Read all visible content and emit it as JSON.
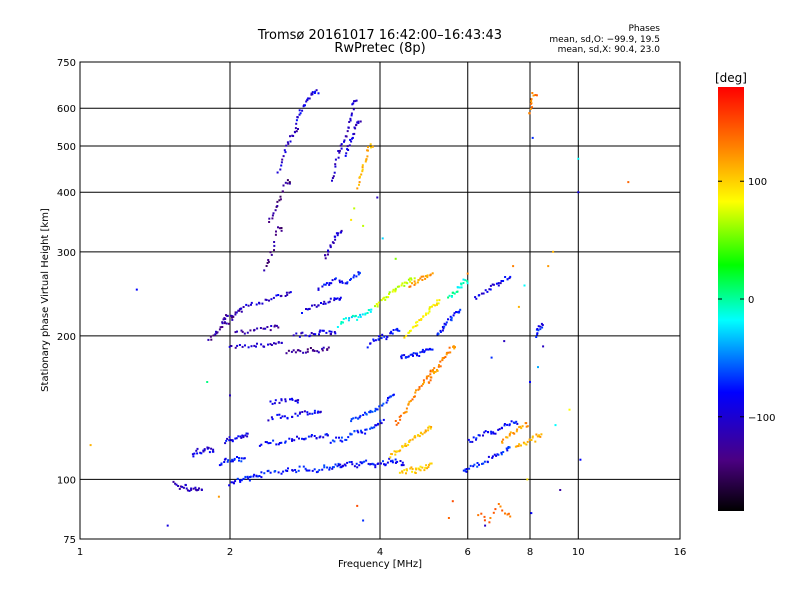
{
  "chart_data": {
    "type": "scatter",
    "title": "Tromsø 20161017 16:42:00–16:43:43",
    "subtitle": "RwPretec (8p)",
    "xlabel": "Frequency [MHz]",
    "ylabel": "Stationary phase Virtual Height [km]",
    "x_scale": "log",
    "y_scale": "log",
    "xlim": [
      1,
      16
    ],
    "ylim": [
      75,
      750
    ],
    "x_ticks": [
      1,
      2,
      4,
      6,
      8,
      10,
      16
    ],
    "x_tick_labels": [
      "1",
      "2",
      "4",
      "6",
      "8",
      "10",
      "16"
    ],
    "y_ticks": [
      75,
      100,
      200,
      300,
      400,
      500,
      600,
      750
    ],
    "y_tick_labels": [
      "75",
      "100",
      "200",
      "300",
      "400",
      "500",
      "600",
      "750"
    ],
    "grid": true,
    "colorbar": {
      "label": "[deg]",
      "range": [
        -180,
        180
      ],
      "ticks": [
        100,
        0,
        -100
      ],
      "tick_labels": [
        "100",
        "0",
        "−100"
      ],
      "colors": [
        "#000000",
        "#4b0082",
        "#0000ff",
        "#00ffff",
        "#00ff00",
        "#ffff00",
        "#ff8000",
        "#ff0000"
      ]
    },
    "annotation": {
      "heading": "Phases",
      "lines": [
        "mean, sd,O: −99.9, 19.5",
        "mean, sd,X:  90.4, 23.0"
      ]
    },
    "traces": [
      {
        "x": [
          1.55,
          1.58,
          1.62,
          1.66,
          1.7,
          1.73
        ],
        "y": [
          98,
          96,
          97,
          95,
          96,
          95
        ],
        "phase": -125
      },
      {
        "x": [
          1.68,
          1.72,
          1.76,
          1.8,
          1.83
        ],
        "y": [
          112,
          115,
          114,
          116,
          115
        ],
        "phase": -110
      },
      {
        "x": [
          1.82,
          1.86,
          1.9,
          1.95
        ],
        "y": [
          195,
          200,
          206,
          212
        ],
        "phase": -130
      },
      {
        "x": [
          1.93,
          1.97,
          2.01,
          2.05,
          2.09
        ],
        "y": [
          215,
          220,
          218,
          222,
          226
        ],
        "phase": -130
      },
      {
        "x": [
          2.0,
          2.05,
          2.1,
          2.15,
          2.2,
          2.25
        ],
        "y": [
          98,
          100,
          99,
          101,
          100,
          102
        ],
        "phase": -100
      },
      {
        "x": [
          1.9,
          1.95,
          2.0,
          2.05,
          2.1
        ],
        "y": [
          108,
          110,
          109,
          111,
          110
        ],
        "phase": -95
      },
      {
        "x": [
          1.95,
          2.0,
          2.05,
          2.1,
          2.15
        ],
        "y": [
          120,
          122,
          121,
          123,
          124
        ],
        "phase": -105
      },
      {
        "x": [
          2.0,
          2.1,
          2.2,
          2.3,
          2.4,
          2.5
        ],
        "y": [
          188,
          190,
          189,
          192,
          191,
          193
        ],
        "phase": -120
      },
      {
        "x": [
          2.05,
          2.15,
          2.25,
          2.35,
          2.45
        ],
        "y": [
          205,
          204,
          207,
          206,
          209
        ],
        "phase": -125
      },
      {
        "x": [
          2.1,
          2.2,
          2.3,
          2.4,
          2.5,
          2.6
        ],
        "y": [
          228,
          232,
          235,
          238,
          242,
          245
        ],
        "phase": -115
      },
      {
        "x": [
          2.3,
          2.4,
          2.5,
          2.6,
          2.7,
          2.8,
          2.9,
          3.0,
          3.1,
          3.2,
          3.3
        ],
        "y": [
          102,
          104,
          103,
          105,
          104,
          106,
          105,
          104,
          106,
          105,
          107
        ],
        "phase": -95
      },
      {
        "x": [
          2.3,
          2.4,
          2.5,
          2.6,
          2.7,
          2.8,
          2.9,
          3.0,
          3.1
        ],
        "y": [
          118,
          120,
          119,
          121,
          122,
          121,
          123,
          122,
          124
        ],
        "phase": -100
      },
      {
        "x": [
          2.4,
          2.5,
          2.6,
          2.7,
          2.8,
          2.9,
          3.0
        ],
        "y": [
          134,
          136,
          135,
          137,
          138,
          137,
          139
        ],
        "phase": -105
      },
      {
        "x": [
          2.4,
          2.5,
          2.6,
          2.7
        ],
        "y": [
          145,
          146,
          147,
          146
        ],
        "phase": -110
      },
      {
        "x": [
          2.35,
          2.4,
          2.45,
          2.5
        ],
        "y": [
          275,
          290,
          310,
          335
        ],
        "phase": -135
      },
      {
        "x": [
          2.4,
          2.45,
          2.5,
          2.55,
          2.6
        ],
        "y": [
          345,
          360,
          380,
          400,
          420
        ],
        "phase": -140
      },
      {
        "x": [
          2.5,
          2.55,
          2.6,
          2.65,
          2.7
        ],
        "y": [
          440,
          470,
          500,
          520,
          540
        ],
        "phase": -120
      },
      {
        "x": [
          2.7,
          2.75,
          2.8,
          2.85,
          2.9,
          2.95
        ],
        "y": [
          560,
          580,
          600,
          620,
          640,
          650
        ],
        "phase": -110
      },
      {
        "x": [
          2.6,
          2.7,
          2.8,
          2.9,
          3.0,
          3.1
        ],
        "y": [
          185,
          186,
          185,
          187,
          186,
          188
        ],
        "phase": -135
      },
      {
        "x": [
          2.7,
          2.8,
          2.9,
          3.0,
          3.1,
          3.2
        ],
        "y": [
          200,
          202,
          201,
          203,
          204,
          202
        ],
        "phase": -115
      },
      {
        "x": [
          2.8,
          2.9,
          3.0,
          3.1,
          3.2,
          3.3
        ],
        "y": [
          225,
          230,
          232,
          235,
          238,
          240
        ],
        "phase": -110
      },
      {
        "x": [
          3.0,
          3.1,
          3.2,
          3.3,
          3.4,
          3.5,
          3.6
        ],
        "y": [
          250,
          255,
          260,
          262,
          258,
          265,
          270
        ],
        "phase": -100
      },
      {
        "x": [
          3.1,
          3.15,
          3.2,
          3.25,
          3.3
        ],
        "y": [
          290,
          300,
          310,
          320,
          330
        ],
        "phase": -120
      },
      {
        "x": [
          3.2,
          3.25,
          3.3,
          3.35,
          3.4,
          3.45,
          3.5,
          3.55
        ],
        "y": [
          420,
          450,
          480,
          500,
          520,
          550,
          580,
          620
        ],
        "phase": -120
      },
      {
        "x": [
          3.4,
          3.45,
          3.5,
          3.55,
          3.6
        ],
        "y": [
          480,
          500,
          520,
          540,
          560
        ],
        "phase": -115
      },
      {
        "x": [
          3.3,
          3.4,
          3.5,
          3.6,
          3.7,
          3.8
        ],
        "y": [
          210,
          215,
          220,
          218,
          222,
          225
        ],
        "phase": -40
      },
      {
        "x": [
          3.6,
          3.65,
          3.7,
          3.75,
          3.8
        ],
        "y": [
          410,
          430,
          450,
          470,
          500
        ],
        "phase": 110
      },
      {
        "x": [
          3.3,
          3.4,
          3.5,
          3.6,
          3.7,
          3.8,
          3.9,
          4.0,
          4.1,
          4.2,
          4.3,
          4.4
        ],
        "y": [
          106,
          107,
          108,
          107,
          109,
          108,
          107,
          109,
          108,
          110,
          109,
          108
        ],
        "phase": -100
      },
      {
        "x": [
          3.2,
          3.3,
          3.4,
          3.5,
          3.6,
          3.7,
          3.8,
          3.9,
          4.0
        ],
        "y": [
          120,
          122,
          121,
          124,
          126,
          125,
          128,
          130,
          132
        ],
        "phase": -95
      },
      {
        "x": [
          3.5,
          3.6,
          3.7,
          3.8,
          3.9,
          4.0,
          4.1,
          4.2
        ],
        "y": [
          133,
          135,
          137,
          138,
          140,
          142,
          145,
          150
        ],
        "phase": -90
      },
      {
        "x": [
          3.8,
          3.9,
          4.0,
          4.1,
          4.2,
          4.3
        ],
        "y": [
          190,
          195,
          200,
          198,
          202,
          205
        ],
        "phase": -100
      },
      {
        "x": [
          3.9,
          4.0,
          4.1,
          4.2,
          4.3,
          4.4,
          4.5,
          4.6
        ],
        "y": [
          230,
          235,
          240,
          245,
          250,
          255,
          258,
          262
        ],
        "phase": 60
      },
      {
        "x": [
          4.3,
          4.4,
          4.5,
          4.6,
          4.7,
          4.8,
          4.9,
          5.0,
          5.1
        ],
        "y": [
          130,
          135,
          140,
          145,
          150,
          155,
          160,
          165,
          170
        ],
        "phase": 130
      },
      {
        "x": [
          4.2,
          4.3,
          4.4,
          4.5,
          4.6,
          4.7,
          4.8,
          4.9,
          5.0
        ],
        "y": [
          112,
          114,
          116,
          118,
          120,
          122,
          124,
          126,
          128
        ],
        "phase": 105
      },
      {
        "x": [
          4.4,
          4.5,
          4.6,
          4.7,
          4.8,
          4.9,
          5.0
        ],
        "y": [
          103,
          104,
          105,
          104,
          106,
          105,
          107
        ],
        "phase": 100
      },
      {
        "x": [
          4.5,
          4.6,
          4.7,
          4.8,
          4.9,
          5.0,
          5.1,
          5.2
        ],
        "y": [
          200,
          205,
          210,
          215,
          220,
          225,
          230,
          236
        ],
        "phase": 85
      },
      {
        "x": [
          4.6,
          4.7,
          4.8,
          4.9,
          5.0
        ],
        "y": [
          255,
          258,
          262,
          265,
          268
        ],
        "phase": 120
      },
      {
        "x": [
          5.0,
          5.1,
          5.2,
          5.3,
          5.4,
          5.5,
          5.6
        ],
        "y": [
          160,
          165,
          170,
          175,
          180,
          185,
          190
        ],
        "phase": 125
      },
      {
        "x": [
          4.4,
          4.5,
          4.6,
          4.7,
          4.8,
          4.9,
          5.0
        ],
        "y": [
          180,
          182,
          181,
          184,
          183,
          186,
          188
        ],
        "phase": -100
      },
      {
        "x": [
          5.2,
          5.3,
          5.4,
          5.5,
          5.6,
          5.7
        ],
        "y": [
          200,
          205,
          210,
          215,
          220,
          225
        ],
        "phase": -95
      },
      {
        "x": [
          5.5,
          5.6,
          5.7,
          5.8,
          5.9
        ],
        "y": [
          240,
          245,
          250,
          255,
          260
        ],
        "phase": -30
      },
      {
        "x": [
          5.9,
          6.0,
          6.2,
          6.4,
          6.6,
          6.8,
          7.0,
          7.2
        ],
        "y": [
          104,
          105,
          107,
          108,
          110,
          112,
          114,
          116
        ],
        "phase": -95
      },
      {
        "x": [
          6.0,
          6.2,
          6.4,
          6.6,
          6.8,
          7.0,
          7.2,
          7.4
        ],
        "y": [
          120,
          122,
          124,
          126,
          125,
          128,
          130,
          132
        ],
        "phase": -100
      },
      {
        "x": [
          7.0,
          7.2,
          7.4,
          7.6,
          7.8
        ],
        "y": [
          120,
          122,
          125,
          128,
          130
        ],
        "phase": 120
      },
      {
        "x": [
          7.5,
          7.7,
          7.9,
          8.1,
          8.3
        ],
        "y": [
          116,
          118,
          120,
          122,
          124
        ],
        "phase": 110
      },
      {
        "x": [
          6.2,
          6.4,
          6.6,
          6.8,
          7.0,
          7.2
        ],
        "y": [
          240,
          245,
          250,
          255,
          260,
          265
        ],
        "phase": -110
      },
      {
        "x": [
          6.3,
          6.6,
          6.9,
          7.2
        ],
        "y": [
          85,
          82,
          88,
          84
        ],
        "phase": 140
      },
      {
        "x": [
          8.0,
          8.05,
          8.1
        ],
        "y": [
          580,
          610,
          640
        ],
        "phase": 130
      },
      {
        "x": [
          8.2,
          8.3,
          8.4
        ],
        "y": [
          200,
          205,
          210
        ],
        "phase": -100
      }
    ],
    "scatter": [
      {
        "x": 1.3,
        "y": 250,
        "phase": -100
      },
      {
        "x": 1.05,
        "y": 118,
        "phase": 110
      },
      {
        "x": 1.5,
        "y": 80,
        "phase": -110
      },
      {
        "x": 1.8,
        "y": 160,
        "phase": -20
      },
      {
        "x": 1.9,
        "y": 92,
        "phase": 120
      },
      {
        "x": 2.0,
        "y": 150,
        "phase": -120
      },
      {
        "x": 3.7,
        "y": 340,
        "phase": 60
      },
      {
        "x": 3.95,
        "y": 390,
        "phase": -120
      },
      {
        "x": 4.3,
        "y": 290,
        "phase": 40
      },
      {
        "x": 3.6,
        "y": 88,
        "phase": 150
      },
      {
        "x": 3.7,
        "y": 82,
        "phase": -90
      },
      {
        "x": 5.6,
        "y": 90,
        "phase": 150
      },
      {
        "x": 5.5,
        "y": 83,
        "phase": 140
      },
      {
        "x": 6.0,
        "y": 270,
        "phase": 130
      },
      {
        "x": 6.7,
        "y": 180,
        "phase": -90
      },
      {
        "x": 7.1,
        "y": 195,
        "phase": -120
      },
      {
        "x": 7.4,
        "y": 280,
        "phase": 130
      },
      {
        "x": 7.6,
        "y": 230,
        "phase": 110
      },
      {
        "x": 7.8,
        "y": 255,
        "phase": -40
      },
      {
        "x": 8.0,
        "y": 160,
        "phase": -100
      },
      {
        "x": 8.1,
        "y": 520,
        "phase": -90
      },
      {
        "x": 8.2,
        "y": 120,
        "phase": 110
      },
      {
        "x": 8.3,
        "y": 172,
        "phase": -60
      },
      {
        "x": 8.5,
        "y": 190,
        "phase": -120
      },
      {
        "x": 8.7,
        "y": 280,
        "phase": 120
      },
      {
        "x": 8.9,
        "y": 300,
        "phase": 110
      },
      {
        "x": 9.0,
        "y": 130,
        "phase": -40
      },
      {
        "x": 9.2,
        "y": 95,
        "phase": -130
      },
      {
        "x": 9.6,
        "y": 140,
        "phase": 80
      },
      {
        "x": 10.0,
        "y": 470,
        "phase": -40
      },
      {
        "x": 10.0,
        "y": 400,
        "phase": -110
      },
      {
        "x": 10.1,
        "y": 110,
        "phase": -100
      },
      {
        "x": 12.6,
        "y": 420,
        "phase": 140
      },
      {
        "x": 8.05,
        "y": 85,
        "phase": -100
      },
      {
        "x": 7.9,
        "y": 100,
        "phase": 90
      },
      {
        "x": 6.5,
        "y": 80,
        "phase": -120
      },
      {
        "x": 4.05,
        "y": 320,
        "phase": -50
      },
      {
        "x": 3.5,
        "y": 350,
        "phase": 90
      },
      {
        "x": 3.55,
        "y": 370,
        "phase": 60
      }
    ]
  }
}
